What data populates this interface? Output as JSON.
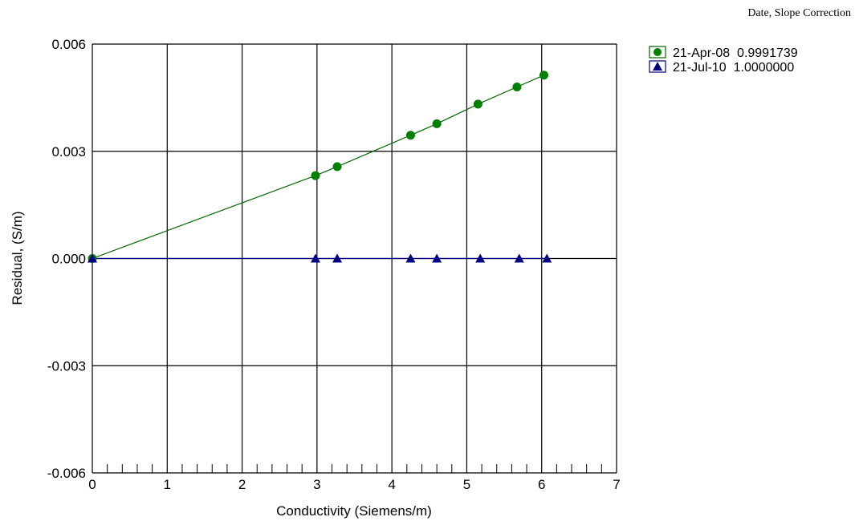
{
  "chart_data": {
    "type": "scatter",
    "title": "",
    "xlabel": "Conductivity (Siemens/m)",
    "ylabel": "Residual, (S/m)",
    "xlim": [
      0,
      7
    ],
    "ylim": [
      -0.006,
      0.006
    ],
    "xticks": [
      "0",
      "1",
      "2",
      "3",
      "4",
      "5",
      "6",
      "7"
    ],
    "yticks": [
      "-0.006",
      "-0.003",
      "0.000",
      "0.003",
      "0.006"
    ],
    "grid": true,
    "legend_title": "Date, Slope Correction",
    "legend_position": "top-right",
    "series": [
      {
        "name": "21-Apr-08  0.9991739",
        "color": "#008000",
        "line_color": "#006400",
        "marker": "circle",
        "x": [
          0.0,
          2.98,
          3.27,
          4.25,
          4.6,
          5.15,
          5.67,
          6.03
        ],
        "y": [
          0.0,
          0.00232,
          0.00257,
          0.00345,
          0.00377,
          0.00432,
          0.0048,
          0.00513
        ]
      },
      {
        "name": "21-Jul-10  1.0000000",
        "color": "#000080",
        "line_color": "#000080",
        "marker": "triangle",
        "x": [
          0.0,
          2.98,
          3.27,
          4.25,
          4.6,
          5.18,
          5.7,
          6.07
        ],
        "y": [
          0.0,
          0.0,
          0.0,
          0.0,
          0.0,
          0.0,
          0.0,
          0.0
        ]
      }
    ]
  }
}
